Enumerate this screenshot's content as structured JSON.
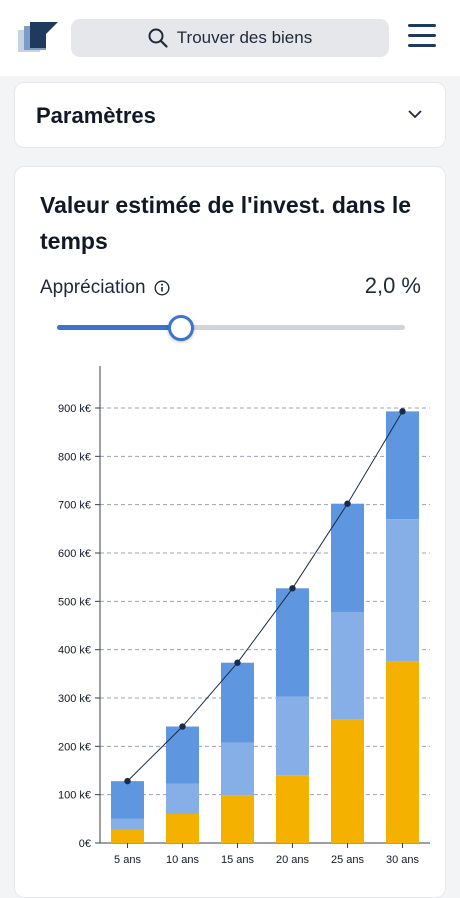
{
  "header": {
    "search_label": "Trouver des biens",
    "logo_icon": "stacked-blocks-logo",
    "menu_icon": "hamburger-menu-icon"
  },
  "params": {
    "title": "Paramètres"
  },
  "chart_section": {
    "title": "Valeur estimée de l'invest. dans le temps",
    "appreciation_label": "Appréciation",
    "appreciation_value": "2,0 %",
    "appreciation_level": 0.35
  },
  "colors": {
    "accent": "#3b74c9",
    "navy": "#1e3a5f",
    "bar_top": "#5f96e0",
    "bar_mid": "#86afe8",
    "bar_base": "#f5b100",
    "line": "#1a2a4a"
  },
  "chart_data": {
    "type": "bar",
    "categories": [
      "5 ans",
      "10 ans",
      "15 ans",
      "20 ans",
      "25 ans",
      "30 ans"
    ],
    "series": [
      {
        "values": [
          27,
          60,
          98,
          140,
          255,
          375
        ]
      },
      {
        "values": [
          23,
          63,
          110,
          163,
          223,
          295
        ]
      },
      {
        "values": [
          78,
          118,
          165,
          224,
          224,
          223
        ]
      }
    ],
    "line_values": [
      128,
      241,
      373,
      527,
      702,
      893
    ],
    "y_ticks": [
      "0€",
      "100 k€",
      "200 k€",
      "300 k€",
      "400 k€",
      "500 k€",
      "600 k€",
      "700 k€",
      "800 k€",
      "900 k€"
    ],
    "ylim": [
      0,
      900
    ],
    "stacked": true,
    "grid": true
  }
}
